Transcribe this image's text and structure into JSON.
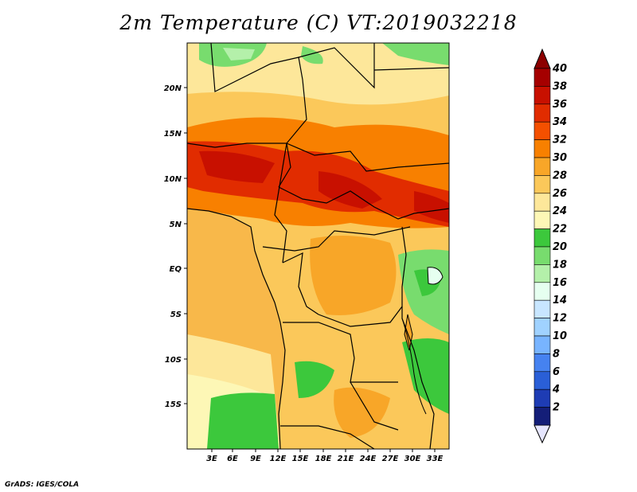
{
  "title": "2m Temperature (C) VT:2019032218",
  "credit": "GrADS: IGES/COLA",
  "map": {
    "lat_ticks": [
      "20N",
      "15N",
      "10N",
      "5N",
      "EQ",
      "5S",
      "10S",
      "15S"
    ],
    "lon_ticks": [
      "3E",
      "6E",
      "9E",
      "12E",
      "15E",
      "18E",
      "21E",
      "24E",
      "27E",
      "30E",
      "33E"
    ]
  },
  "colorbar": {
    "labels": [
      "40",
      "38",
      "36",
      "34",
      "32",
      "30",
      "28",
      "26",
      "24",
      "22",
      "20",
      "18",
      "16",
      "14",
      "12",
      "10",
      "8",
      "6",
      "4",
      "2"
    ],
    "colors": [
      "#a50000",
      "#c81000",
      "#e12c00",
      "#f45000",
      "#f88000",
      "#f8a628",
      "#fbc85a",
      "#fde79a",
      "#fdf7b6",
      "#3cc83c",
      "#78dc6e",
      "#b4f0aa",
      "#e6fff0",
      "#c8e6ff",
      "#a0d2ff",
      "#78b4ff",
      "#4682f0",
      "#2a5fd7",
      "#1e3cb4",
      "#141e78"
    ],
    "top_arrow_color": "#8c0000",
    "bottom_arrow_color": "#e6e6ff"
  }
}
